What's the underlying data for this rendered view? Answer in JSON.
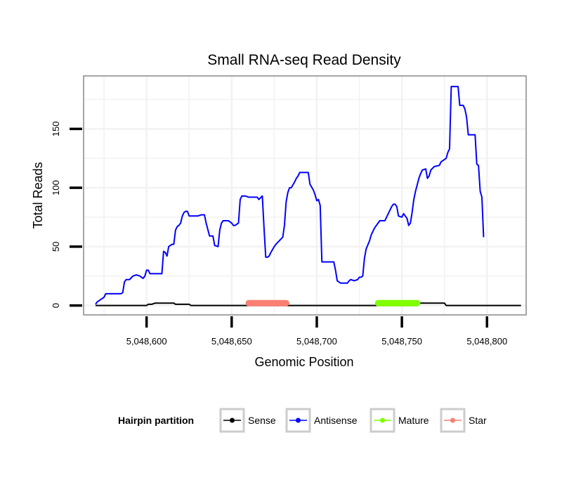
{
  "chart_data": {
    "type": "line",
    "title": "Small RNA-seq Read Density",
    "xlabel": "Genomic Position",
    "ylabel": "Total Reads",
    "xlim": [
      5048563,
      5048823
    ],
    "ylim": [
      -8,
      195
    ],
    "x_ticks": [
      {
        "value": 5048600,
        "label": "5,048,600"
      },
      {
        "value": 5048650,
        "label": "5,048,650"
      },
      {
        "value": 5048700,
        "label": "5,048,700"
      },
      {
        "value": 5048750,
        "label": "5,048,750"
      },
      {
        "value": 5048800,
        "label": "5,048,800"
      }
    ],
    "y_ticks": [
      {
        "value": 0,
        "label": "0"
      },
      {
        "value": 50,
        "label": "50"
      },
      {
        "value": 100,
        "label": "100"
      },
      {
        "value": 150,
        "label": "150"
      }
    ],
    "grid": true,
    "legend": {
      "title": "Hairpin partition",
      "placement": "bottom",
      "entries": [
        {
          "name": "Sense",
          "color": "#000000"
        },
        {
          "name": "Antisense",
          "color": "#0000ff"
        },
        {
          "name": "Mature",
          "color": "#7fff00"
        },
        {
          "name": "Star",
          "color": "#fa8072"
        }
      ]
    },
    "series": [
      {
        "name": "Antisense",
        "color": "#0000ff",
        "points": [
          [
            5048570,
            1
          ],
          [
            5048571,
            3
          ],
          [
            5048572,
            4
          ],
          [
            5048573,
            5
          ],
          [
            5048574,
            6
          ],
          [
            5048575,
            7
          ],
          [
            5048576,
            10
          ],
          [
            5048578,
            10
          ],
          [
            5048585,
            10
          ],
          [
            5048586,
            11
          ],
          [
            5048587,
            20
          ],
          [
            5048588,
            22
          ],
          [
            5048590,
            22
          ],
          [
            5048592,
            25
          ],
          [
            5048594,
            26
          ],
          [
            5048596,
            25
          ],
          [
            5048598,
            23
          ],
          [
            5048599,
            25
          ],
          [
            5048600,
            30
          ],
          [
            5048601,
            30
          ],
          [
            5048602,
            27
          ],
          [
            5048605,
            27
          ],
          [
            5048609,
            27
          ],
          [
            5048610,
            46
          ],
          [
            5048611,
            45
          ],
          [
            5048612,
            42
          ],
          [
            5048613,
            50
          ],
          [
            5048615,
            52
          ],
          [
            5048616,
            52
          ],
          [
            5048617,
            64
          ],
          [
            5048618,
            67
          ],
          [
            5048619,
            68
          ],
          [
            5048620,
            70
          ],
          [
            5048621,
            76
          ],
          [
            5048622,
            79
          ],
          [
            5048623,
            80
          ],
          [
            5048624,
            80
          ],
          [
            5048625,
            76
          ],
          [
            5048630,
            76
          ],
          [
            5048632,
            77
          ],
          [
            5048634,
            77
          ],
          [
            5048635,
            70
          ],
          [
            5048637,
            59
          ],
          [
            5048639,
            59
          ],
          [
            5048640,
            51
          ],
          [
            5048642,
            50
          ],
          [
            5048643,
            64
          ],
          [
            5048644,
            70
          ],
          [
            5048645,
            72
          ],
          [
            5048648,
            72
          ],
          [
            5048650,
            70
          ],
          [
            5048651,
            68
          ],
          [
            5048652,
            68
          ],
          [
            5048654,
            70
          ],
          [
            5048655,
            90
          ],
          [
            5048656,
            93
          ],
          [
            5048658,
            93
          ],
          [
            5048660,
            92
          ],
          [
            5048665,
            92
          ],
          [
            5048666,
            90
          ],
          [
            5048668,
            93
          ],
          [
            5048669,
            66
          ],
          [
            5048670,
            41
          ],
          [
            5048671,
            41
          ],
          [
            5048672,
            42
          ],
          [
            5048673,
            45
          ],
          [
            5048675,
            50
          ],
          [
            5048676,
            52
          ],
          [
            5048678,
            55
          ],
          [
            5048680,
            58
          ],
          [
            5048681,
            68
          ],
          [
            5048682,
            88
          ],
          [
            5048683,
            96
          ],
          [
            5048684,
            100
          ],
          [
            5048685,
            100
          ],
          [
            5048687,
            105
          ],
          [
            5048688,
            108
          ],
          [
            5048689,
            110
          ],
          [
            5048690,
            113
          ],
          [
            5048692,
            113
          ],
          [
            5048695,
            113
          ],
          [
            5048696,
            103
          ],
          [
            5048698,
            98
          ],
          [
            5048699,
            94
          ],
          [
            5048700,
            89
          ],
          [
            5048701,
            90
          ],
          [
            5048702,
            85
          ],
          [
            5048703,
            37
          ],
          [
            5048706,
            37
          ],
          [
            5048710,
            37
          ],
          [
            5048711,
            30
          ],
          [
            5048712,
            21
          ],
          [
            5048714,
            19
          ],
          [
            5048718,
            19
          ],
          [
            5048719,
            21
          ],
          [
            5048720,
            22
          ],
          [
            5048722,
            21
          ],
          [
            5048724,
            22
          ],
          [
            5048725,
            24
          ],
          [
            5048726,
            24
          ],
          [
            5048727,
            25
          ],
          [
            5048728,
            40
          ],
          [
            5048729,
            48
          ],
          [
            5048731,
            55
          ],
          [
            5048732,
            60
          ],
          [
            5048734,
            66
          ],
          [
            5048736,
            70
          ],
          [
            5048737,
            72
          ],
          [
            5048740,
            72
          ],
          [
            5048742,
            78
          ],
          [
            5048744,
            84
          ],
          [
            5048745,
            86
          ],
          [
            5048746,
            86
          ],
          [
            5048747,
            84
          ],
          [
            5048748,
            76
          ],
          [
            5048750,
            75
          ],
          [
            5048751,
            78
          ],
          [
            5048752,
            76
          ],
          [
            5048753,
            74
          ],
          [
            5048754,
            68
          ],
          [
            5048755,
            70
          ],
          [
            5048756,
            79
          ],
          [
            5048757,
            90
          ],
          [
            5048758,
            97
          ],
          [
            5048760,
            108
          ],
          [
            5048761,
            112
          ],
          [
            5048762,
            115
          ],
          [
            5048764,
            116
          ],
          [
            5048765,
            108
          ],
          [
            5048766,
            110
          ],
          [
            5048767,
            115
          ],
          [
            5048769,
            118
          ],
          [
            5048772,
            119
          ],
          [
            5048773,
            122
          ],
          [
            5048775,
            124
          ],
          [
            5048776,
            125
          ],
          [
            5048777,
            130
          ],
          [
            5048778,
            133
          ],
          [
            5048779,
            186
          ],
          [
            5048780,
            186
          ],
          [
            5048783,
            186
          ],
          [
            5048784,
            170
          ],
          [
            5048786,
            170
          ],
          [
            5048787,
            167
          ],
          [
            5048788,
            160
          ],
          [
            5048789,
            145
          ],
          [
            5048793,
            145
          ],
          [
            5048794,
            120
          ],
          [
            5048795,
            119
          ],
          [
            5048796,
            97
          ],
          [
            5048797,
            92
          ],
          [
            5048798,
            58
          ]
        ]
      },
      {
        "name": "Sense",
        "color": "#000000",
        "points": [
          [
            5048570,
            0
          ],
          [
            5048600,
            0
          ],
          [
            5048601,
            1
          ],
          [
            5048603,
            1
          ],
          [
            5048605,
            2
          ],
          [
            5048610,
            2
          ],
          [
            5048616,
            2
          ],
          [
            5048617,
            1
          ],
          [
            5048625,
            1
          ],
          [
            5048626,
            0
          ],
          [
            5048700,
            0
          ],
          [
            5048759,
            0
          ],
          [
            5048760,
            2
          ],
          [
            5048775,
            2
          ],
          [
            5048776,
            0
          ],
          [
            5048820,
            0
          ]
        ]
      },
      {
        "name": "Star",
        "color": "#fa8072",
        "points": [
          [
            5048660,
            2
          ],
          [
            5048682,
            2
          ]
        ]
      },
      {
        "name": "Mature",
        "color": "#7fff00",
        "points": [
          [
            5048736,
            2
          ],
          [
            5048759,
            2
          ]
        ]
      }
    ]
  }
}
